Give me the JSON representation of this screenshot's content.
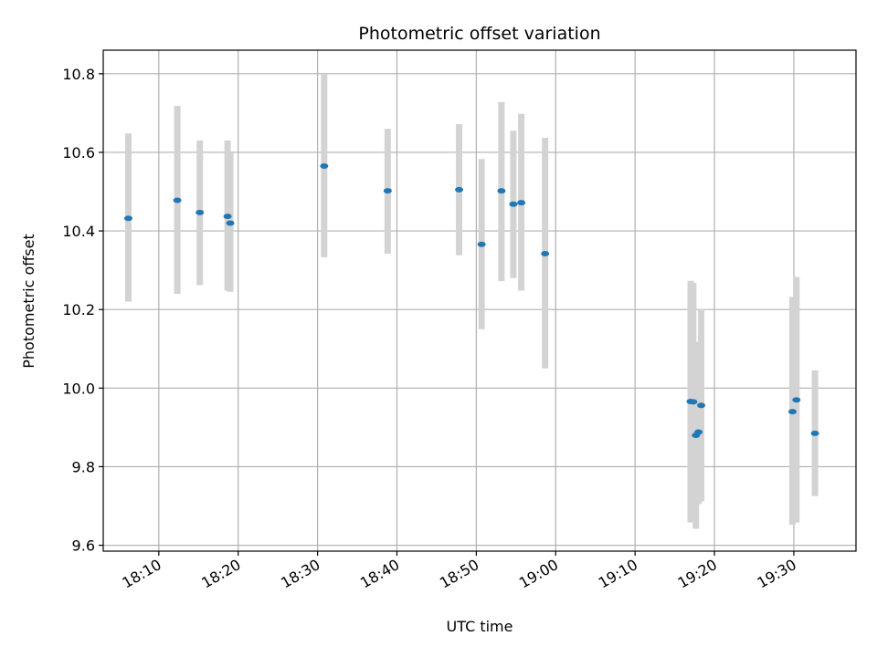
{
  "chart_data": {
    "type": "scatter",
    "title": "Photometric offset variation",
    "xlabel": "UTC time",
    "ylabel": "Photometric offset",
    "x_ticks": [
      "18:10",
      "18:20",
      "18:30",
      "18:40",
      "18:50",
      "19:00",
      "19:10",
      "19:20",
      "19:30"
    ],
    "y_ticks": [
      "9.6",
      "9.8",
      "10.0",
      "10.2",
      "10.4",
      "10.6",
      "10.8"
    ],
    "xlim": [
      "18:03:00",
      "19:37:50"
    ],
    "ylim": [
      9.585,
      10.86
    ],
    "grid": true,
    "colors": {
      "point": "#1f77b4",
      "errorbar": "#d3d3d3",
      "grid": "#b0b0b0"
    },
    "points": [
      {
        "x": "18:06:10",
        "y": 10.432,
        "err_low": 10.22,
        "err_high": 10.648
      },
      {
        "x": "18:12:20",
        "y": 10.478,
        "err_low": 10.24,
        "err_high": 10.718
      },
      {
        "x": "18:15:10",
        "y": 10.447,
        "err_low": 10.262,
        "err_high": 10.63
      },
      {
        "x": "18:18:40",
        "y": 10.437,
        "err_low": 10.248,
        "err_high": 10.63
      },
      {
        "x": "18:19:00",
        "y": 10.42,
        "err_low": 10.245,
        "err_high": 10.598
      },
      {
        "x": "18:30:50",
        "y": 10.565,
        "err_low": 10.333,
        "err_high": 10.798
      },
      {
        "x": "18:38:50",
        "y": 10.502,
        "err_low": 10.342,
        "err_high": 10.66
      },
      {
        "x": "18:47:50",
        "y": 10.505,
        "err_low": 10.338,
        "err_high": 10.672
      },
      {
        "x": "18:50:40",
        "y": 10.366,
        "err_low": 10.15,
        "err_high": 10.583
      },
      {
        "x": "18:53:10",
        "y": 10.502,
        "err_low": 10.272,
        "err_high": 10.728
      },
      {
        "x": "18:54:40",
        "y": 10.468,
        "err_low": 10.28,
        "err_high": 10.655
      },
      {
        "x": "18:55:40",
        "y": 10.472,
        "err_low": 10.248,
        "err_high": 10.698
      },
      {
        "x": "18:58:40",
        "y": 10.342,
        "err_low": 10.05,
        "err_high": 10.637
      },
      {
        "x": "19:17:00",
        "y": 9.966,
        "err_low": 9.658,
        "err_high": 10.273
      },
      {
        "x": "19:17:20",
        "y": 9.965,
        "err_low": 9.662,
        "err_high": 10.268
      },
      {
        "x": "19:17:40",
        "y": 9.88,
        "err_low": 9.642,
        "err_high": 10.118
      },
      {
        "x": "19:18:00",
        "y": 9.888,
        "err_low": 9.705,
        "err_high": 10.072
      },
      {
        "x": "19:18:20",
        "y": 9.956,
        "err_low": 9.712,
        "err_high": 10.202
      },
      {
        "x": "19:29:50",
        "y": 9.94,
        "err_low": 9.652,
        "err_high": 10.232
      },
      {
        "x": "19:30:20",
        "y": 9.97,
        "err_low": 9.658,
        "err_high": 10.283
      },
      {
        "x": "19:32:40",
        "y": 9.885,
        "err_low": 9.725,
        "err_high": 10.045
      }
    ]
  }
}
